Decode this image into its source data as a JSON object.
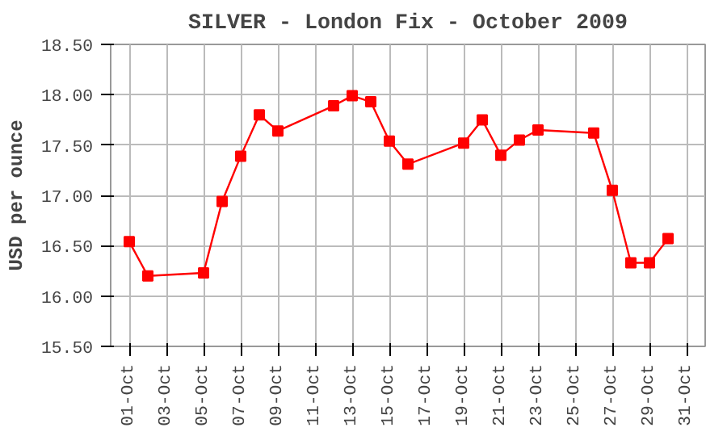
{
  "chart_data": {
    "type": "line",
    "title": "SILVER - London Fix - October 2009",
    "ylabel": "USD per ounce",
    "x": [
      "2009-10-01",
      "2009-10-02",
      "2009-10-05",
      "2009-10-06",
      "2009-10-07",
      "2009-10-08",
      "2009-10-09",
      "2009-10-12",
      "2009-10-13",
      "2009-10-14",
      "2009-10-15",
      "2009-10-16",
      "2009-10-19",
      "2009-10-20",
      "2009-10-21",
      "2009-10-22",
      "2009-10-23",
      "2009-10-26",
      "2009-10-27",
      "2009-10-28",
      "2009-10-29",
      "2009-10-30"
    ],
    "series": [
      {
        "color": "#ff0000",
        "values": [
          16.54,
          16.2,
          16.23,
          16.94,
          17.39,
          17.8,
          17.64,
          17.89,
          17.99,
          17.93,
          17.54,
          17.31,
          17.52,
          17.75,
          17.4,
          17.55,
          17.65,
          17.62,
          17.05,
          16.33,
          16.33,
          16.57
        ]
      }
    ],
    "xlim": [
      "2009-09-30",
      "2009-11-01"
    ],
    "xticks": [
      {
        "value": "2009-10-01",
        "label": "01-Oct"
      },
      {
        "value": "2009-10-03",
        "label": "03-Oct"
      },
      {
        "value": "2009-10-05",
        "label": "05-Oct"
      },
      {
        "value": "2009-10-07",
        "label": "07-Oct"
      },
      {
        "value": "2009-10-09",
        "label": "09-Oct"
      },
      {
        "value": "2009-10-11",
        "label": "11-Oct"
      },
      {
        "value": "2009-10-13",
        "label": "13-Oct"
      },
      {
        "value": "2009-10-15",
        "label": "15-Oct"
      },
      {
        "value": "2009-10-17",
        "label": "17-Oct"
      },
      {
        "value": "2009-10-19",
        "label": "19-Oct"
      },
      {
        "value": "2009-10-21",
        "label": "21-Oct"
      },
      {
        "value": "2009-10-23",
        "label": "23-Oct"
      },
      {
        "value": "2009-10-25",
        "label": "25-Oct"
      },
      {
        "value": "2009-10-27",
        "label": "27-Oct"
      },
      {
        "value": "2009-10-29",
        "label": "29-Oct"
      },
      {
        "value": "2009-10-31",
        "label": "31-Oct"
      }
    ],
    "ylim": [
      15.5,
      18.5
    ],
    "yticks": [
      {
        "value": 15.5,
        "label": "15.50"
      },
      {
        "value": 16,
        "label": "16.00"
      },
      {
        "value": 16.5,
        "label": "16.50"
      },
      {
        "value": 17,
        "label": "17.00"
      },
      {
        "value": 17.5,
        "label": "17.50"
      },
      {
        "value": 18,
        "label": "18.00"
      },
      {
        "value": 18.5,
        "label": "18.50"
      }
    ],
    "grid": true,
    "marker": "square",
    "line_style": "solid"
  }
}
